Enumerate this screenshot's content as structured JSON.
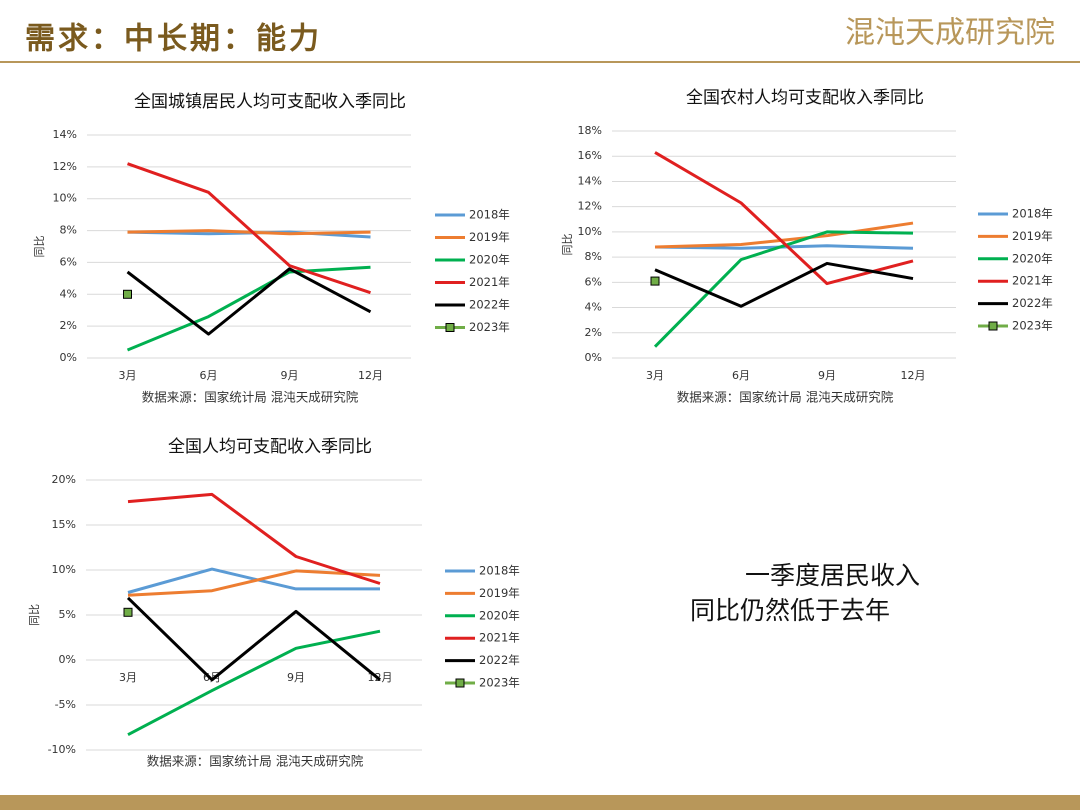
{
  "header": {
    "title": "需求：中长期：能力",
    "logo": "混沌天成研究院"
  },
  "note": [
    "一季度居民收入",
    "同比仍然低于去年"
  ],
  "chart_data": [
    {
      "type": "line",
      "title": "全国城镇居民人均可支配收入季同比",
      "y_label": "同比",
      "source": "数据来源：国家统计局 混沌天成研究院",
      "categories": [
        "3月",
        "6月",
        "9月",
        "12月"
      ],
      "ylim": [
        0,
        14
      ],
      "yticks": [
        {
          "value": 0,
          "label": "0%"
        },
        {
          "value": 2,
          "label": "2%"
        },
        {
          "value": 4,
          "label": "4%"
        },
        {
          "value": 6,
          "label": "6%"
        },
        {
          "value": 8,
          "label": "8%"
        },
        {
          "value": 10,
          "label": "10%"
        },
        {
          "value": 12,
          "label": "12%"
        },
        {
          "value": 14,
          "label": "14%"
        }
      ],
      "grid": true,
      "legend": "right",
      "series": [
        {
          "name": "2018年",
          "color": "#5b9bd5",
          "values": [
            7.9,
            7.8,
            7.9,
            7.6
          ]
        },
        {
          "name": "2019年",
          "color": "#ed7d31",
          "values": [
            7.9,
            8.0,
            7.8,
            7.9
          ]
        },
        {
          "name": "2020年",
          "color": "#00b050",
          "values": [
            0.5,
            2.6,
            5.4,
            5.7
          ]
        },
        {
          "name": "2021年",
          "color": "#e02020",
          "values": [
            12.2,
            10.4,
            5.8,
            4.1
          ]
        },
        {
          "name": "2022年",
          "color": "#000000",
          "values": [
            5.4,
            1.5,
            5.6,
            2.9
          ]
        },
        {
          "name": "2023年",
          "color": "#70ad47",
          "marker": "square",
          "values": [
            4.0,
            null,
            null,
            null
          ]
        }
      ]
    },
    {
      "type": "line",
      "title": "全国农村人均可支配收入季同比",
      "y_label": "同比",
      "source": "数据来源：国家统计局 混沌天成研究院",
      "categories": [
        "3月",
        "6月",
        "9月",
        "12月"
      ],
      "ylim": [
        0,
        18
      ],
      "yticks": [
        {
          "value": 0,
          "label": "0%"
        },
        {
          "value": 2,
          "label": "2%"
        },
        {
          "value": 4,
          "label": "4%"
        },
        {
          "value": 6,
          "label": "6%"
        },
        {
          "value": 8,
          "label": "8%"
        },
        {
          "value": 10,
          "label": "10%"
        },
        {
          "value": 12,
          "label": "12%"
        },
        {
          "value": 14,
          "label": "14%"
        },
        {
          "value": 16,
          "label": "16%"
        },
        {
          "value": 18,
          "label": "18%"
        }
      ],
      "grid": true,
      "legend": "right",
      "series": [
        {
          "name": "2018年",
          "color": "#5b9bd5",
          "values": [
            8.8,
            8.7,
            8.9,
            8.7
          ]
        },
        {
          "name": "2019年",
          "color": "#ed7d31",
          "values": [
            8.8,
            9.0,
            9.7,
            10.7
          ]
        },
        {
          "name": "2020年",
          "color": "#00b050",
          "values": [
            0.9,
            7.8,
            10.0,
            9.9
          ]
        },
        {
          "name": "2021年",
          "color": "#e02020",
          "values": [
            16.3,
            12.3,
            5.9,
            7.7
          ]
        },
        {
          "name": "2022年",
          "color": "#000000",
          "values": [
            7.0,
            4.1,
            7.5,
            6.3
          ]
        },
        {
          "name": "2023年",
          "color": "#70ad47",
          "marker": "square",
          "values": [
            6.1,
            null,
            null,
            null
          ]
        }
      ]
    },
    {
      "type": "line",
      "title": "全国人均可支配收入季同比",
      "y_label": "同比",
      "source": "数据来源：国家统计局 混沌天成研究院",
      "categories": [
        "3月",
        "6月",
        "9月",
        "12月"
      ],
      "ylim": [
        -10,
        20
      ],
      "yticks": [
        {
          "value": -10,
          "label": "-10%"
        },
        {
          "value": -5,
          "label": "-5%"
        },
        {
          "value": 0,
          "label": "0%"
        },
        {
          "value": 5,
          "label": "5%"
        },
        {
          "value": 10,
          "label": "10%"
        },
        {
          "value": 15,
          "label": "15%"
        },
        {
          "value": 20,
          "label": "20%"
        }
      ],
      "grid": true,
      "legend": "right",
      "series": [
        {
          "name": "2018年",
          "color": "#5b9bd5",
          "values": [
            7.5,
            10.1,
            7.9,
            7.9
          ]
        },
        {
          "name": "2019年",
          "color": "#ed7d31",
          "values": [
            7.2,
            7.7,
            9.9,
            9.4
          ]
        },
        {
          "name": "2020年",
          "color": "#00b050",
          "values": [
            -8.3,
            -3.4,
            1.3,
            3.2
          ]
        },
        {
          "name": "2021年",
          "color": "#e02020",
          "values": [
            17.6,
            18.4,
            11.5,
            8.5
          ]
        },
        {
          "name": "2022年",
          "color": "#000000",
          "values": [
            6.9,
            -2.2,
            5.4,
            -2.2
          ]
        },
        {
          "name": "2023年",
          "color": "#70ad47",
          "marker": "square",
          "values": [
            5.3,
            null,
            null,
            null
          ]
        }
      ]
    }
  ]
}
